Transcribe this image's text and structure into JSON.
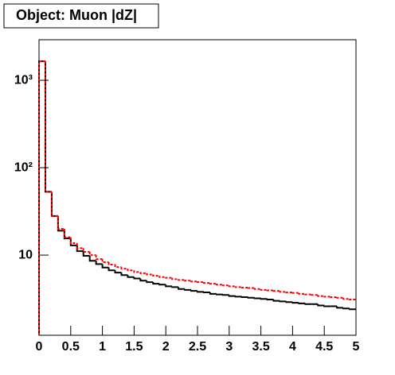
{
  "chart_data": {
    "type": "histogram",
    "title": "Object: Muon |dZ|",
    "log_y": true,
    "bins": [
      0,
      0.1,
      0.2,
      0.3,
      0.4,
      0.5,
      0.6,
      0.7,
      0.8,
      0.9,
      1,
      1.1,
      1.2,
      1.3,
      1.4,
      1.5,
      1.6,
      1.7,
      1.8,
      1.9,
      2,
      2.1,
      2.2,
      2.3,
      2.4,
      2.5,
      2.6,
      2.7,
      2.8,
      2.9,
      3,
      3.1,
      3.2,
      3.3,
      3.4,
      3.5,
      3.6,
      3.7,
      3.8,
      3.9,
      4,
      4.1,
      4.2,
      4.3,
      4.4,
      4.5,
      4.6,
      4.7,
      4.8,
      4.9,
      5
    ],
    "series": [
      {
        "color": "#000000",
        "dashed": false,
        "values": [
          1650,
          53,
          28,
          19,
          15.5,
          12.9,
          11.1,
          9.8,
          8.6,
          7.9,
          7.2,
          6.7,
          6.3,
          5.9,
          5.6,
          5.4,
          5.1,
          4.9,
          4.7,
          4.6,
          4.4,
          4.3,
          4.1,
          4.0,
          3.9,
          3.8,
          3.75,
          3.6,
          3.55,
          3.5,
          3.4,
          3.35,
          3.3,
          3.25,
          3.2,
          3.15,
          3.1,
          3.0,
          2.95,
          2.9,
          2.85,
          2.8,
          2.75,
          2.75,
          2.65,
          2.6,
          2.6,
          2.5,
          2.45,
          2.4
        ]
      },
      {
        "color": "#ff0000",
        "dashed": true,
        "values": [
          1650,
          53,
          28,
          20,
          16,
          13.7,
          12,
          10.9,
          10,
          9,
          8.3,
          7.8,
          7.3,
          7.0,
          6.7,
          6.4,
          6.2,
          6.0,
          5.8,
          5.6,
          5.5,
          5.3,
          5.2,
          5.1,
          5.0,
          4.9,
          4.8,
          4.7,
          4.6,
          4.5,
          4.4,
          4.3,
          4.25,
          4.2,
          4.1,
          4.0,
          3.95,
          3.9,
          3.8,
          3.75,
          3.7,
          3.6,
          3.55,
          3.5,
          3.4,
          3.35,
          3.3,
          3.25,
          3.15,
          3.1
        ]
      }
    ],
    "xlim": [
      0,
      5
    ],
    "xticks": [
      0,
      0.5,
      1,
      1.5,
      2,
      2.5,
      3,
      3.5,
      4,
      4.5,
      5
    ],
    "ylim": [
      1.21,
      2910
    ],
    "yticks": [
      10,
      {
        "value": 100,
        "label": "10²"
      },
      {
        "value": 1000,
        "label": "10³"
      }
    ]
  }
}
